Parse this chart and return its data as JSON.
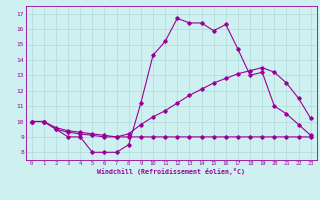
{
  "title": "",
  "xlabel": "Windchill (Refroidissement éolien,°C)",
  "background_color": "#cff0f0",
  "line_color": "#990099",
  "grid_color": "#b0d8d8",
  "xlim": [
    -0.5,
    23.5
  ],
  "ylim": [
    7.5,
    17.5
  ],
  "xticks": [
    0,
    1,
    2,
    3,
    4,
    5,
    6,
    7,
    8,
    9,
    10,
    11,
    12,
    13,
    14,
    15,
    16,
    17,
    18,
    19,
    20,
    21,
    22,
    23
  ],
  "yticks": [
    8,
    9,
    10,
    11,
    12,
    13,
    14,
    15,
    16,
    17
  ],
  "line1": [
    10.0,
    10.0,
    9.5,
    9.0,
    9.0,
    8.0,
    8.0,
    8.0,
    8.5,
    11.2,
    14.3,
    15.2,
    16.7,
    16.4,
    16.4,
    15.9,
    16.3,
    14.7,
    13.0,
    13.2,
    11.0,
    10.5,
    9.8,
    9.1
  ],
  "line2": [
    10.0,
    10.0,
    9.5,
    9.3,
    9.2,
    9.1,
    9.0,
    9.0,
    9.2,
    9.8,
    10.3,
    10.7,
    11.2,
    11.7,
    12.1,
    12.5,
    12.8,
    13.1,
    13.3,
    13.5,
    13.2,
    12.5,
    11.5,
    10.2
  ],
  "line3": [
    10.0,
    10.0,
    9.6,
    9.4,
    9.3,
    9.2,
    9.1,
    9.0,
    9.0,
    9.0,
    9.0,
    9.0,
    9.0,
    9.0,
    9.0,
    9.0,
    9.0,
    9.0,
    9.0,
    9.0,
    9.0,
    9.0,
    9.0,
    9.0
  ]
}
